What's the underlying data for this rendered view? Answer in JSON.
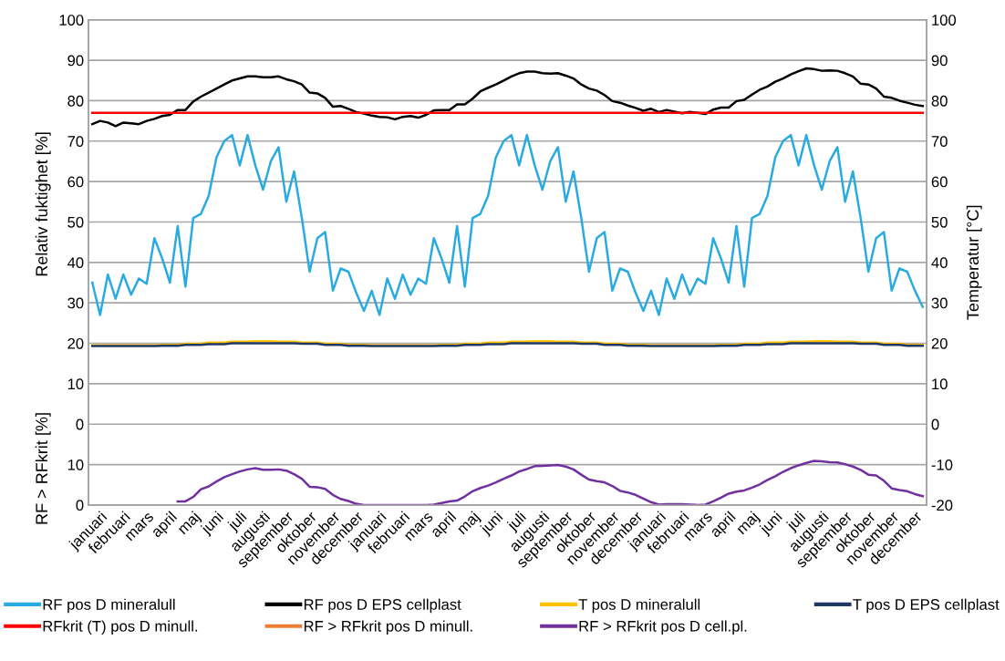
{
  "chart_data": {
    "type": "line",
    "ylabel": "Relativ fuktighet [%]",
    "y2label": "Temperatur [°C]",
    "categories": [
      null,
      "januari",
      null,
      null,
      "februari",
      null,
      null,
      "mars",
      null,
      null,
      "april",
      null,
      null,
      "maj",
      null,
      null,
      "juni",
      null,
      null,
      "juli",
      null,
      null,
      "augusti",
      null,
      null,
      "september",
      null,
      null,
      "oktober",
      null,
      null,
      "november",
      null,
      null,
      "december",
      null,
      null,
      "januari",
      null,
      null,
      "februari",
      null,
      null,
      "mars",
      null,
      null,
      "april",
      null,
      null,
      "maj",
      null,
      null,
      "juni",
      null,
      null,
      "juli",
      null,
      null,
      "augusti",
      null,
      null,
      "september",
      null,
      null,
      "oktober",
      null,
      null,
      "november",
      null,
      null,
      "december",
      null,
      null,
      "januari",
      null,
      null,
      "februari",
      null,
      null,
      "mars",
      null,
      null,
      "april",
      null,
      null,
      "maj",
      null,
      null,
      "juni",
      null,
      null,
      "juli",
      null,
      null,
      "augusti",
      null,
      null,
      "september",
      null,
      null,
      "oktober",
      null,
      null,
      "november",
      null,
      null,
      "december",
      null
    ],
    "ylim": [
      -20,
      100
    ],
    "yticks": [
      0,
      10,
      20,
      30,
      40,
      50,
      60,
      70,
      80,
      90,
      100
    ],
    "y3lim": [
      0,
      120
    ],
    "y3ticks": [
      0,
      10
    ],
    "y3label": "RF > RFkrit [%]",
    "y2lim": [
      -20,
      100
    ],
    "y2ticks": [
      -20,
      -10,
      0,
      10,
      20,
      30,
      40,
      50,
      60,
      70,
      80,
      90,
      100
    ],
    "grid": "y",
    "legend": "bottom",
    "marker": "none",
    "line_style": "solid",
    "series": [
      {
        "name": "RF pos D mineralull",
        "color": "#29abe2",
        "values": [
          35,
          27,
          37,
          31,
          37,
          32,
          36,
          34.7,
          46,
          41,
          35,
          49,
          34,
          51,
          52,
          56.5,
          66,
          70,
          71.5,
          64,
          71.5,
          64,
          58,
          65,
          68.5,
          55,
          62.5,
          51,
          37.7,
          46,
          47.5,
          33,
          38.5,
          37.7,
          32.5,
          28,
          33,
          27,
          36,
          31,
          37,
          32,
          36,
          34.7,
          46,
          41,
          35,
          49,
          34,
          51,
          52,
          56.5,
          66,
          70,
          71.5,
          64,
          71.5,
          64,
          58,
          65,
          68.5,
          55,
          62.5,
          51,
          37.7,
          46,
          47.5,
          33,
          38.5,
          37.7,
          32.5,
          28,
          33,
          27,
          36,
          31,
          37,
          32,
          36,
          34.7,
          46,
          41,
          35,
          49,
          34,
          51,
          52,
          56.5,
          66,
          70,
          71.5,
          64,
          71.5,
          64,
          58,
          65,
          68.5,
          55,
          62.5,
          51,
          37.7,
          46,
          47.5,
          33,
          38.5,
          37.7,
          33,
          29
        ]
      },
      {
        "name": "RF pos D EPS cellplast",
        "color": "#000000",
        "values": [
          74.2,
          75,
          74.6,
          73.7,
          74.6,
          74.4,
          74.2,
          75,
          75.5,
          76.2,
          76.5,
          77.7,
          77.7,
          79.8,
          81,
          82,
          83,
          84,
          85,
          85.5,
          86,
          86,
          85.8,
          85.8,
          86,
          85.3,
          84.8,
          84,
          82,
          81.8,
          80.7,
          78.5,
          78.7,
          78,
          77.2,
          76.8,
          76.3,
          76,
          75.9,
          75.4,
          76,
          76.2,
          75.8,
          76.5,
          77.6,
          77.7,
          77.7,
          79.1,
          79.1,
          80.5,
          82.3,
          83.2,
          84,
          85,
          86,
          86.8,
          87.2,
          87.2,
          86.8,
          86.7,
          86.8,
          86.2,
          85.5,
          84,
          83,
          82.5,
          81.4,
          79.9,
          79.5,
          78.8,
          78.2,
          77.5,
          78,
          77.2,
          77.7,
          77.3,
          76.9,
          77.2,
          77,
          76.7,
          77.8,
          78.3,
          78.3,
          79.9,
          80.2,
          81.5,
          82.7,
          83.5,
          84.7,
          85.5,
          86.5,
          87.3,
          88,
          87.8,
          87.4,
          87.5,
          87.4,
          86.8,
          86,
          84.2,
          84,
          83,
          81,
          80.7,
          80,
          79.5,
          79,
          78.7
        ]
      },
      {
        "name": "T pos D mineralull",
        "color": "#ffc000",
        "axis": "y2",
        "values": [
          19.5,
          19.5,
          19.5,
          19.5,
          19.5,
          19.5,
          19.5,
          19.5,
          19.5,
          19.6,
          19.6,
          19.6,
          19.9,
          19.9,
          19.9,
          20.2,
          20.2,
          20.2,
          20.4,
          20.4,
          20.4,
          20.5,
          20.5,
          20.5,
          20.4,
          20.4,
          20.4,
          20.2,
          20.2,
          20.2,
          19.9,
          19.9,
          19.9,
          19.6,
          19.6,
          19.6,
          19.5,
          19.5,
          19.5,
          19.5,
          19.5,
          19.5,
          19.5,
          19.5,
          19.5,
          19.6,
          19.6,
          19.6,
          19.9,
          19.9,
          19.9,
          20.2,
          20.2,
          20.2,
          20.4,
          20.4,
          20.4,
          20.5,
          20.5,
          20.5,
          20.4,
          20.4,
          20.4,
          20.2,
          20.2,
          20.2,
          19.9,
          19.9,
          19.9,
          19.6,
          19.6,
          19.6,
          19.5,
          19.5,
          19.5,
          19.5,
          19.5,
          19.5,
          19.5,
          19.5,
          19.5,
          19.6,
          19.6,
          19.6,
          19.9,
          19.9,
          19.9,
          20.2,
          20.2,
          20.2,
          20.4,
          20.4,
          20.4,
          20.5,
          20.5,
          20.5,
          20.4,
          20.4,
          20.4,
          20.2,
          20.2,
          20.2,
          19.9,
          19.9,
          19.9,
          19.6,
          19.6,
          19.6
        ]
      },
      {
        "name": "T pos D EPS cellplast",
        "color": "#1f3864",
        "axis": "y2",
        "values": [
          19.3,
          19.3,
          19.3,
          19.3,
          19.3,
          19.3,
          19.3,
          19.3,
          19.3,
          19.4,
          19.4,
          19.4,
          19.6,
          19.6,
          19.6,
          19.8,
          19.8,
          19.8,
          20,
          20,
          20,
          20,
          20,
          20,
          20,
          20,
          20,
          19.9,
          19.9,
          19.9,
          19.6,
          19.6,
          19.6,
          19.4,
          19.4,
          19.4,
          19.3,
          19.3,
          19.3,
          19.3,
          19.3,
          19.3,
          19.3,
          19.3,
          19.3,
          19.4,
          19.4,
          19.4,
          19.6,
          19.6,
          19.6,
          19.8,
          19.8,
          19.8,
          20,
          20,
          20,
          20,
          20,
          20,
          20,
          20,
          20,
          19.9,
          19.9,
          19.9,
          19.6,
          19.6,
          19.6,
          19.4,
          19.4,
          19.4,
          19.3,
          19.3,
          19.3,
          19.3,
          19.3,
          19.3,
          19.3,
          19.3,
          19.3,
          19.4,
          19.4,
          19.4,
          19.6,
          19.6,
          19.6,
          19.8,
          19.8,
          19.8,
          20,
          20,
          20,
          20,
          20,
          20,
          20,
          20,
          20,
          19.9,
          19.9,
          19.9,
          19.6,
          19.6,
          19.6,
          19.4,
          19.4,
          19.4
        ]
      },
      {
        "name": "RFkrit (T) pos D minull.",
        "color": "#ff0000",
        "values": [
          77,
          77,
          77,
          77,
          77,
          77,
          77,
          77,
          77,
          77,
          77,
          77,
          77,
          77,
          77,
          77,
          77,
          77,
          77,
          77,
          77,
          77,
          77,
          77,
          77,
          77,
          77,
          77,
          77,
          77,
          77,
          77,
          77,
          77,
          77,
          77,
          77,
          77,
          77,
          77,
          77,
          77,
          77,
          77,
          77,
          77,
          77,
          77,
          77,
          77,
          77,
          77,
          77,
          77,
          77,
          77,
          77,
          77,
          77,
          77,
          77,
          77,
          77,
          77,
          77,
          77,
          77,
          77,
          77,
          77,
          77,
          77,
          77,
          77,
          77,
          77,
          77,
          77,
          77,
          77,
          77,
          77,
          77,
          77,
          77,
          77,
          77,
          77,
          77,
          77,
          77,
          77,
          77,
          77,
          77,
          77,
          77,
          77,
          77,
          77,
          77,
          77,
          77,
          77,
          77,
          77,
          77,
          77
        ]
      },
      {
        "name": "RF > RFkrit pos D minull.",
        "color": "#ed7d31",
        "axis": "y3",
        "values": [
          null,
          null,
          null,
          null,
          null,
          null,
          null,
          null,
          null,
          null,
          null,
          null,
          null,
          null,
          null,
          null,
          null,
          null,
          null,
          null,
          null,
          null,
          null,
          null,
          null,
          null,
          null,
          null,
          null,
          null,
          null,
          null,
          null,
          null,
          null,
          null,
          null,
          null,
          null,
          null,
          null,
          null,
          null,
          null,
          null,
          null,
          null,
          null,
          null,
          null,
          null,
          null,
          null,
          null,
          null,
          null,
          null,
          null,
          null,
          null,
          null,
          null,
          null,
          null,
          null,
          null,
          null,
          null,
          null,
          null,
          null,
          null,
          null,
          null,
          null,
          null,
          null,
          null,
          null,
          null,
          null,
          null,
          null,
          null,
          null,
          null,
          null,
          null,
          null,
          null,
          null,
          null,
          null,
          null,
          null,
          null,
          null,
          null,
          null,
          null,
          null,
          null,
          null,
          null,
          null,
          null,
          null,
          null
        ]
      },
      {
        "name": "RF > RFkrit pos D cell.pl.",
        "color": "#7030a0",
        "axis": "y3",
        "values": [
          null,
          null,
          null,
          null,
          null,
          null,
          null,
          null,
          null,
          null,
          null,
          0.9,
          0.9,
          2,
          3.9,
          4.6,
          5.8,
          6.9,
          7.6,
          8.3,
          8.8,
          9.1,
          8.7,
          8.7,
          8.8,
          8.5,
          7.6,
          6.5,
          4.5,
          4.4,
          4.0,
          2.5,
          1.5,
          1.0,
          0.3,
          0,
          0,
          0,
          0,
          0,
          0,
          0,
          0,
          0,
          0.1,
          0.5,
          0.9,
          1.1,
          2.1,
          3.4,
          4.2,
          4.8,
          5.6,
          6.5,
          7.3,
          8.3,
          8.9,
          9.6,
          9.7,
          9.8,
          9.9,
          9.5,
          8.8,
          7.5,
          6.3,
          5.9,
          5.6,
          4.7,
          3.5,
          3.1,
          2.5,
          1.6,
          0.7,
          0.1,
          0.2,
          0.2,
          0.2,
          0.1,
          0,
          0.1,
          0.9,
          1.8,
          2.8,
          3.3,
          3.6,
          4.3,
          5.1,
          6.2,
          7.1,
          8.2,
          9.1,
          9.8,
          10.4,
          10.9,
          10.8,
          10.6,
          10.5,
          10.1,
          9.5,
          8.7,
          7.5,
          7.3,
          6.0,
          4.1,
          3.7,
          3.4,
          2.7,
          2.2
        ]
      }
    ]
  }
}
